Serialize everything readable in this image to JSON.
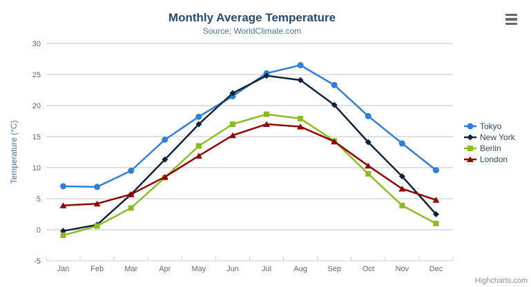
{
  "header": {
    "title": "Monthly Average Temperature",
    "subtitle": "Source: WorldClimate.com"
  },
  "credits": "Highcharts.com",
  "export_menu": {
    "icon": "hamburger-menu-icon"
  },
  "colors": {
    "title": "#274b6d",
    "subtitle": "#4d759e",
    "axis_title": "#4d759e",
    "tick_label": "#666666",
    "gridline": "#c0c0c0",
    "axis_line": "#c0d0e0",
    "legend_text": "#274b6d",
    "credits_text": "#909090"
  },
  "chart_data": {
    "type": "line",
    "title": "Monthly Average Temperature",
    "subtitle": "Source: WorldClimate.com",
    "xlabel": "",
    "ylabel": "Temperature (°C)",
    "categories": [
      "Jan",
      "Feb",
      "Mar",
      "Apr",
      "May",
      "Jun",
      "Jul",
      "Aug",
      "Sep",
      "Oct",
      "Nov",
      "Dec"
    ],
    "ylim": [
      -5,
      30
    ],
    "yticks": [
      30,
      25,
      20,
      15,
      10,
      5,
      0,
      -5
    ],
    "grid": true,
    "legend_position": "right",
    "series": [
      {
        "name": "Tokyo",
        "color": "#2f7ed8",
        "marker": "circle",
        "values": [
          7.0,
          6.9,
          9.5,
          14.5,
          18.2,
          21.5,
          25.2,
          26.5,
          23.3,
          18.3,
          13.9,
          9.6
        ]
      },
      {
        "name": "New York",
        "color": "#0d233a",
        "marker": "diamond",
        "values": [
          -0.2,
          0.8,
          5.7,
          11.3,
          17.0,
          22.0,
          24.8,
          24.1,
          20.1,
          14.1,
          8.6,
          2.5
        ]
      },
      {
        "name": "Berlin",
        "color": "#8bbc21",
        "marker": "square",
        "values": [
          -0.9,
          0.6,
          3.5,
          8.4,
          13.5,
          17.0,
          18.6,
          17.9,
          14.3,
          9.0,
          3.9,
          1.0
        ]
      },
      {
        "name": "London",
        "color": "#910000",
        "marker": "triangle",
        "values": [
          3.9,
          4.2,
          5.7,
          8.5,
          11.9,
          15.2,
          17.0,
          16.6,
          14.2,
          10.3,
          6.6,
          4.8
        ]
      }
    ]
  }
}
